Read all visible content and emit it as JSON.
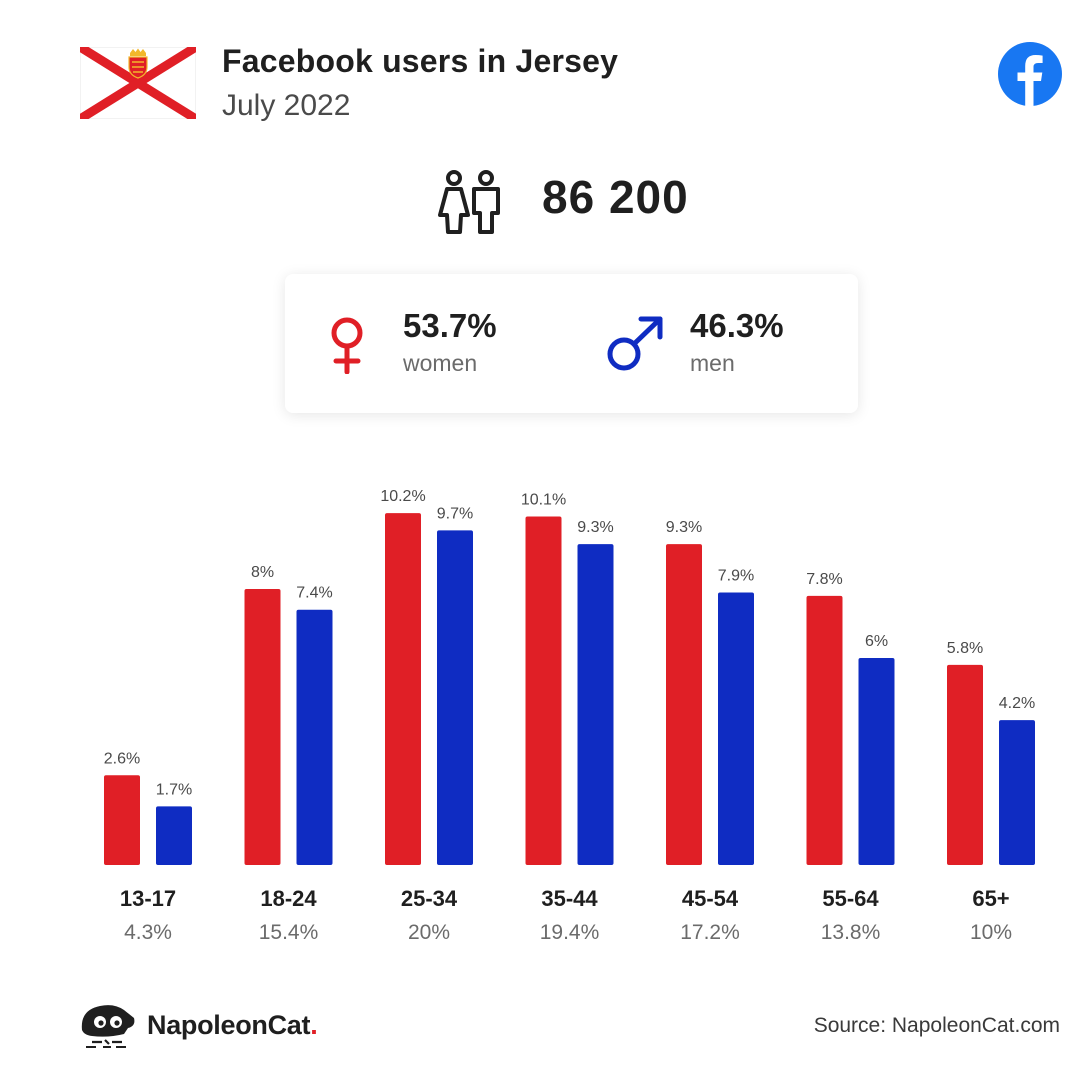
{
  "header": {
    "title": "Facebook users in Jersey",
    "subtitle": "July 2022"
  },
  "total_users": "86 200",
  "gender": {
    "women": {
      "percent": "53.7%",
      "label": "women"
    },
    "men": {
      "percent": "46.3%",
      "label": "men"
    }
  },
  "colors": {
    "women": "#e01f26",
    "men": "#0f2cc2",
    "facebook": "#1877f2"
  },
  "chart_data": {
    "type": "bar",
    "categories": [
      "13-17",
      "18-24",
      "25-34",
      "35-44",
      "45-54",
      "55-64",
      "65+"
    ],
    "group_totals": [
      "4.3%",
      "15.4%",
      "20%",
      "19.4%",
      "17.2%",
      "13.8%",
      "10%"
    ],
    "series": [
      {
        "key": "women",
        "values": [
          2.6,
          8,
          10.2,
          10.1,
          9.3,
          7.8,
          5.8
        ],
        "labels": [
          "2.6%",
          "8%",
          "10.2%",
          "10.1%",
          "9.3%",
          "7.8%",
          "5.8%"
        ]
      },
      {
        "key": "men",
        "values": [
          1.7,
          7.4,
          9.7,
          9.3,
          7.9,
          6,
          4.2
        ],
        "labels": [
          "1.7%",
          "7.4%",
          "9.7%",
          "9.3%",
          "7.9%",
          "6%",
          "4.2%"
        ]
      }
    ],
    "xlabel": "",
    "ylabel": "",
    "grid": false
  },
  "footer": {
    "brand_name": "NapoleonCat",
    "brand_dot": ".",
    "source": "Source: NapoleonCat.com"
  }
}
